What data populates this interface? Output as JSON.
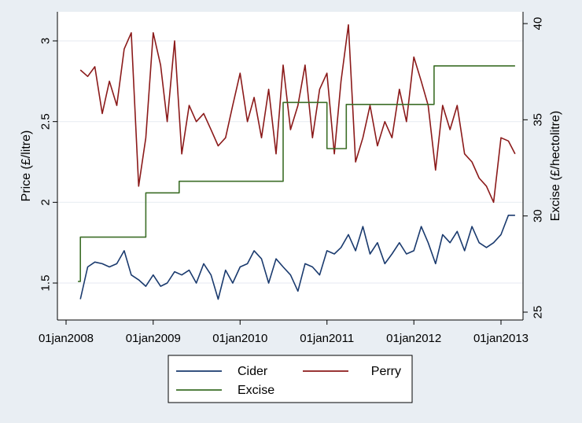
{
  "chart_data": {
    "type": "line",
    "title": "",
    "xlabel": "",
    "ylabel_left": "Price (£/litre)",
    "ylabel_right": "Excise (£/hectolitre)",
    "x_ticks": [
      "01jan2008",
      "01jan2009",
      "01jan2010",
      "01jan2011",
      "01jan2012",
      "01jan2013"
    ],
    "xlim": [
      "2008-01-01",
      "2013-01-01"
    ],
    "ylim_left": [
      1.3,
      3.1
    ],
    "yticks_left": [
      1.5,
      2,
      2.5,
      3
    ],
    "ylim_right": [
      25,
      40
    ],
    "yticks_right": [
      25,
      30,
      35,
      40
    ],
    "grid": "horizontal",
    "legend_position": "bottom",
    "colors": {
      "Cider": "#1a3a6e",
      "Perry": "#8b1a1a",
      "Excise": "#3c6e27",
      "plot_bg": "#ffffff",
      "page_bg": "#e9eef3",
      "grid": "#e9eef3"
    },
    "series": [
      {
        "name": "Cider",
        "axis": "left",
        "x": [
          "2008-03-01",
          "2008-04-01",
          "2008-05-01",
          "2008-06-01",
          "2008-07-01",
          "2008-08-01",
          "2008-09-01",
          "2008-10-01",
          "2008-11-01",
          "2008-12-01",
          "2009-01-01",
          "2009-02-01",
          "2009-03-01",
          "2009-04-01",
          "2009-05-01",
          "2009-06-01",
          "2009-07-01",
          "2009-08-01",
          "2009-09-01",
          "2009-10-01",
          "2009-11-01",
          "2009-12-01",
          "2010-01-01",
          "2010-02-01",
          "2010-03-01",
          "2010-04-01",
          "2010-05-01",
          "2010-06-01",
          "2010-07-01",
          "2010-08-01",
          "2010-09-01",
          "2010-10-01",
          "2010-11-01",
          "2010-12-01",
          "2011-01-01",
          "2011-02-01",
          "2011-03-01",
          "2011-04-01",
          "2011-05-01",
          "2011-06-01",
          "2011-07-01",
          "2011-08-01",
          "2011-09-01",
          "2011-10-01",
          "2011-11-01",
          "2011-12-01",
          "2012-01-01",
          "2012-02-01",
          "2012-03-01",
          "2012-04-01",
          "2012-05-01",
          "2012-06-01",
          "2012-07-01",
          "2012-08-01",
          "2012-09-01",
          "2012-10-01",
          "2012-11-01",
          "2012-12-01",
          "2013-01-01",
          "2013-02-01",
          "2013-03-01"
        ],
        "values": [
          1.4,
          1.6,
          1.63,
          1.62,
          1.6,
          1.62,
          1.7,
          1.55,
          1.52,
          1.48,
          1.55,
          1.48,
          1.5,
          1.57,
          1.55,
          1.58,
          1.5,
          1.62,
          1.55,
          1.4,
          1.58,
          1.5,
          1.6,
          1.62,
          1.7,
          1.65,
          1.5,
          1.65,
          1.6,
          1.55,
          1.45,
          1.62,
          1.6,
          1.55,
          1.7,
          1.68,
          1.72,
          1.8,
          1.7,
          1.85,
          1.68,
          1.75,
          1.62,
          1.68,
          1.75,
          1.68,
          1.7,
          1.85,
          1.75,
          1.62,
          1.8,
          1.75,
          1.82,
          1.7,
          1.85,
          1.75,
          1.72,
          1.75,
          1.8,
          1.92,
          1.92
        ]
      },
      {
        "name": "Perry",
        "axis": "left",
        "x": [
          "2008-03-01",
          "2008-04-01",
          "2008-05-01",
          "2008-06-01",
          "2008-07-01",
          "2008-08-01",
          "2008-09-01",
          "2008-10-01",
          "2008-11-01",
          "2008-12-01",
          "2009-01-01",
          "2009-02-01",
          "2009-03-01",
          "2009-04-01",
          "2009-05-01",
          "2009-06-01",
          "2009-07-01",
          "2009-08-01",
          "2009-09-01",
          "2009-10-01",
          "2009-11-01",
          "2009-12-01",
          "2010-01-01",
          "2010-02-01",
          "2010-03-01",
          "2010-04-01",
          "2010-05-01",
          "2010-06-01",
          "2010-07-01",
          "2010-08-01",
          "2010-09-01",
          "2010-10-01",
          "2010-11-01",
          "2010-12-01",
          "2011-01-01",
          "2011-02-01",
          "2011-03-01",
          "2011-04-01",
          "2011-05-01",
          "2011-06-01",
          "2011-07-01",
          "2011-08-01",
          "2011-09-01",
          "2011-10-01",
          "2011-11-01",
          "2011-12-01",
          "2012-01-01",
          "2012-02-01",
          "2012-03-01",
          "2012-04-01",
          "2012-05-01",
          "2012-06-01",
          "2012-07-01",
          "2012-08-01",
          "2012-09-01",
          "2012-10-01",
          "2012-11-01",
          "2012-12-01",
          "2013-01-01",
          "2013-02-01",
          "2013-03-01"
        ],
        "values": [
          2.82,
          2.78,
          2.84,
          2.55,
          2.75,
          2.6,
          2.95,
          3.05,
          2.1,
          2.4,
          3.05,
          2.85,
          2.5,
          3.0,
          2.3,
          2.6,
          2.5,
          2.55,
          2.45,
          2.35,
          2.4,
          2.6,
          2.8,
          2.5,
          2.65,
          2.4,
          2.7,
          2.3,
          2.85,
          2.45,
          2.6,
          2.85,
          2.4,
          2.7,
          2.8,
          2.3,
          2.75,
          3.1,
          2.25,
          2.4,
          2.6,
          2.35,
          2.5,
          2.4,
          2.7,
          2.5,
          2.9,
          2.75,
          2.6,
          2.2,
          2.6,
          2.45,
          2.6,
          2.3,
          2.25,
          2.15,
          2.1,
          2.0,
          2.4,
          2.38,
          2.3
        ]
      },
      {
        "name": "Excise",
        "axis": "right",
        "x": [
          "2008-02-20",
          "2008-03-01",
          "2008-12-01",
          "2009-04-20",
          "2010-03-22",
          "2010-07-01",
          "2011-01-01",
          "2011-03-23",
          "2012-03-26",
          "2013-03-01"
        ],
        "values": [
          26.6,
          28.9,
          31.2,
          31.8,
          31.8,
          35.9,
          33.5,
          35.8,
          37.8,
          37.8
        ],
        "step": true
      }
    ]
  }
}
